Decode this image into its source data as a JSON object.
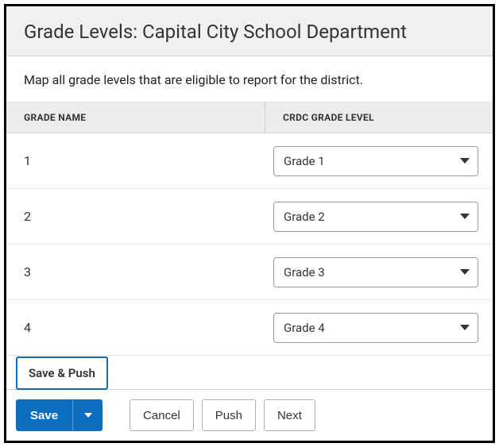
{
  "header": {
    "title": "Grade Levels: Capital City School Department"
  },
  "instruction": "Map all grade levels that are eligible to report for the district.",
  "table": {
    "columns": {
      "name": "GRADE NAME",
      "level": "CRDC GRADE LEVEL"
    },
    "rows": [
      {
        "name": "1",
        "level": "Grade 1"
      },
      {
        "name": "2",
        "level": "Grade 2"
      },
      {
        "name": "3",
        "level": "Grade 3"
      },
      {
        "name": "4",
        "level": "Grade 4"
      }
    ]
  },
  "popup": {
    "save_push": "Save & Push"
  },
  "buttons": {
    "save": "Save",
    "cancel": "Cancel",
    "push": "Push",
    "next": "Next"
  },
  "colors": {
    "primary": "#0d6dc1",
    "border": "#d0d0d0",
    "header_bg": "#f0f0f0",
    "table_header_bg": "#ececec",
    "text": "#333333",
    "outer_border": "#000000"
  }
}
